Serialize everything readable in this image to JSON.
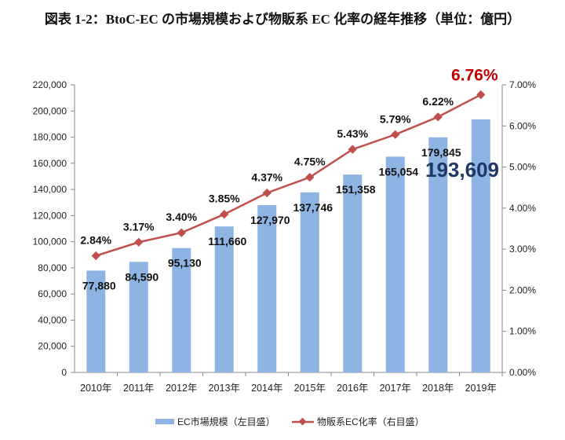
{
  "chart_data": {
    "type": "bar+line",
    "title": "図表 1-2：BtoC-EC の市場規模および物販系 EC 化率の経年推移（単位：億円）",
    "categories": [
      "2010年",
      "2011年",
      "2012年",
      "2013年",
      "2014年",
      "2015年",
      "2016年",
      "2017年",
      "2018年",
      "2019年"
    ],
    "series": [
      {
        "name": "EC市場規模（左目盛）",
        "axis": "left",
        "kind": "bar",
        "color": "#8eb4e3",
        "values": [
          77880,
          84590,
          95130,
          111660,
          127970,
          137746,
          151358,
          165054,
          179845,
          193609
        ],
        "labels": [
          "77,880",
          "84,590",
          "95,130",
          "111,660",
          "127,970",
          "137,746",
          "151,358",
          "165,054",
          "179,845",
          "193,609"
        ]
      },
      {
        "name": "物販系EC化率（右目盛）",
        "axis": "right",
        "kind": "line",
        "color": "#c0504d",
        "values": [
          2.84,
          3.17,
          3.4,
          3.85,
          4.37,
          4.75,
          5.43,
          5.79,
          6.22,
          6.76
        ],
        "labels": [
          "2.84%",
          "3.17%",
          "3.40%",
          "3.85%",
          "4.37%",
          "4.75%",
          "5.43%",
          "5.79%",
          "6.22%",
          "6.76%"
        ]
      }
    ],
    "y_left": {
      "min": 0,
      "max": 220000,
      "ticks": [
        "0",
        "20,000",
        "40,000",
        "60,000",
        "80,000",
        "100,000",
        "120,000",
        "140,000",
        "160,000",
        "180,000",
        "200,000",
        "220,000"
      ]
    },
    "y_right": {
      "min": 0,
      "max": 7,
      "ticks": [
        "0.00%",
        "1.00%",
        "2.00%",
        "3.00%",
        "4.00%",
        "5.00%",
        "6.00%",
        "7.00%"
      ]
    },
    "highlight_colors": {
      "last_bar_label": "#1f3864",
      "last_line_label": "#c00000"
    },
    "legend_position": "bottom",
    "grid": false
  }
}
